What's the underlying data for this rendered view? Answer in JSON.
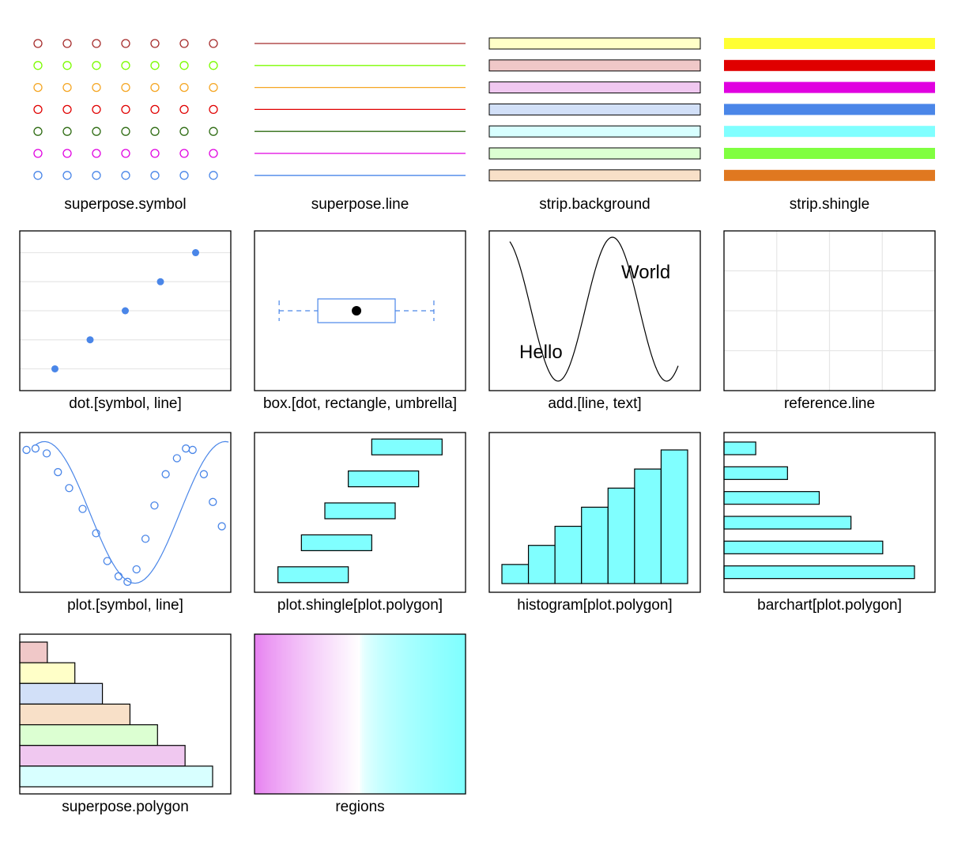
{
  "chart_data": {
    "type": "panel-grid",
    "title": "",
    "panels": [
      {
        "name": "superpose.symbol",
        "label": "superpose.symbol"
      },
      {
        "name": "superpose.line",
        "label": "superpose.line"
      },
      {
        "name": "strip.background",
        "label": "strip.background"
      },
      {
        "name": "strip.shingle",
        "label": "strip.shingle"
      },
      {
        "name": "dot",
        "label": "dot.[symbol, line]"
      },
      {
        "name": "box",
        "label": "box.[dot, rectangle, umbrella]"
      },
      {
        "name": "add",
        "label": "add.[line, text]",
        "text_a": "Hello",
        "text_b": "World"
      },
      {
        "name": "reference-line",
        "label": "reference.line"
      },
      {
        "name": "plot",
        "label": "plot.[symbol, line]"
      },
      {
        "name": "plot-shingle",
        "label": "plot.shingle[plot.polygon]"
      },
      {
        "name": "histogram",
        "label": "histogram[plot.polygon]"
      },
      {
        "name": "barchart",
        "label": "barchart[plot.polygon]"
      },
      {
        "name": "superpose-polygon",
        "label": "superpose.polygon"
      },
      {
        "name": "regions",
        "label": "regions"
      }
    ],
    "superpose_symbol_colors": [
      "#a52a2a",
      "#7cfc00",
      "#f5a623",
      "#e00000",
      "#2e6b12",
      "#e000e0",
      "#4a86e8"
    ],
    "superpose_line_colors": [
      "#a52a2a",
      "#7cfc00",
      "#f5a623",
      "#e00000",
      "#2e6b12",
      "#e000e0",
      "#4a86e8"
    ],
    "strip_background_colors": [
      "#ffffc8",
      "#f0c8c8",
      "#f0c8f0",
      "#d2e0f8",
      "#d8ffff",
      "#dcffd2",
      "#f8e0c8"
    ],
    "strip_shingle_colors": [
      "#ffff33",
      "#e00000",
      "#e000e0",
      "#4a86e8",
      "#80ffff",
      "#80ff40",
      "#e07820"
    ],
    "superpose_polygon_colors": [
      "#f0c8c8",
      "#ffffc8",
      "#d2e0f8",
      "#f8e0c8",
      "#dcffd2",
      "#f0c8f0",
      "#d8ffff"
    ],
    "superpose_polygon_values": [
      1,
      2,
      3,
      4,
      5,
      6,
      7
    ],
    "dot_values": [
      1,
      2,
      3,
      4,
      5
    ],
    "box_stats": {
      "whisker_low": 0,
      "q1": 1.1,
      "median": 2.2,
      "q3": 3.3,
      "whisker_high": 4.4
    },
    "plot_points": [
      [
        0.1,
        0.9
      ],
      [
        0.5,
        0.92
      ],
      [
        1.0,
        0.85
      ],
      [
        1.5,
        0.58
      ],
      [
        2.0,
        0.35
      ],
      [
        2.6,
        0.05
      ],
      [
        3.2,
        -0.3
      ],
      [
        3.7,
        -0.7
      ],
      [
        4.2,
        -0.92
      ],
      [
        4.6,
        -1.0
      ],
      [
        5.0,
        -0.82
      ],
      [
        5.4,
        -0.38
      ],
      [
        5.8,
        0.1
      ],
      [
        6.3,
        0.55
      ],
      [
        6.8,
        0.78
      ],
      [
        7.2,
        0.92
      ],
      [
        7.5,
        0.9
      ],
      [
        8.0,
        0.55
      ],
      [
        8.4,
        0.15
      ],
      [
        8.8,
        -0.2
      ]
    ],
    "shingle_intervals": [
      [
        1,
        4
      ],
      [
        2,
        5
      ],
      [
        3,
        6
      ],
      [
        4,
        7
      ],
      [
        5,
        8
      ]
    ],
    "histogram_values": [
      1,
      2,
      3,
      4,
      5,
      6,
      7
    ],
    "barchart_values": [
      1,
      2,
      3,
      4,
      5,
      6
    ],
    "regions_colors": {
      "low": "#e680f0",
      "mid": "#ffffff",
      "high": "#80ffff"
    },
    "fill_color": "#80ffff",
    "accent_color": "#4a86e8"
  }
}
